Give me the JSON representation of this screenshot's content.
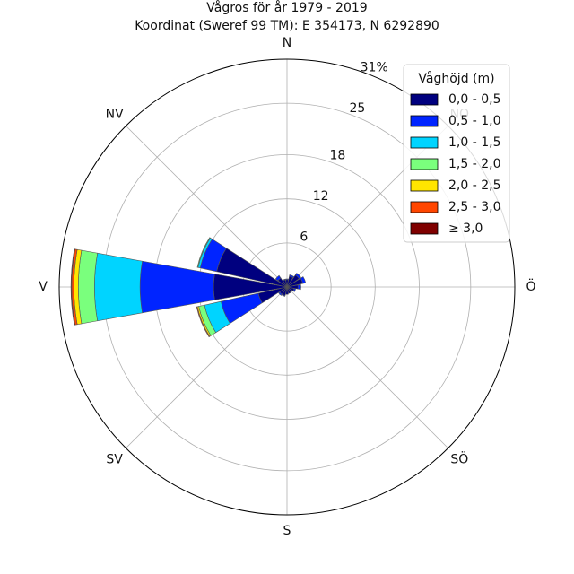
{
  "chart_data": {
    "type": "windrose",
    "title": "Vågros för år 1979 - 2019",
    "subtitle": "Koordinat (Sweref 99 TM): E 354173, N 6292890",
    "directions": [
      "N",
      "NO",
      "Ö",
      "SÖ",
      "S",
      "SV",
      "V",
      "NV"
    ],
    "ring_ticks": [
      6,
      12,
      18,
      25,
      31
    ],
    "ring_tick_labels": [
      "6",
      "12",
      "18",
      "25",
      "31%"
    ],
    "r_max": 31,
    "grid": true,
    "legend": {
      "title": "Våghöjd (m)",
      "placement": "top-right"
    },
    "colors": [
      "#00007f",
      "#0024ff",
      "#00d4ff",
      "#7aff7d",
      "#ffe500",
      "#ff4600",
      "#7f0000"
    ],
    "sectors_deg": [
      0,
      22.5,
      45,
      67.5,
      90,
      112.5,
      135,
      157.5,
      180,
      202.5,
      225,
      247.5,
      270,
      292.5,
      315,
      337.5
    ],
    "series": [
      {
        "name": "0,0 - 0,5",
        "values": [
          1.0,
          1.5,
          2.0,
          2.2,
          1.5,
          1.0,
          0.8,
          0.9,
          1.0,
          1.2,
          1.2,
          4.0,
          10.0,
          9.8,
          1.5,
          1.0
        ]
      },
      {
        "name": "0,5 - 1,0",
        "values": [
          0.1,
          0.2,
          0.3,
          0.4,
          0.4,
          0.2,
          0.0,
          0.0,
          0.0,
          0.1,
          0.2,
          5.2,
          10.0,
          2.3,
          0.4,
          0.1
        ]
      },
      {
        "name": "1,0 - 1,5",
        "values": [
          0.0,
          0.0,
          0.0,
          0.0,
          0.0,
          0.0,
          0.0,
          0.0,
          0.0,
          0.0,
          0.0,
          2.3,
          6.2,
          0.3,
          0.0,
          0.0
        ]
      },
      {
        "name": "1,5 - 2,0",
        "values": [
          0.0,
          0.0,
          0.0,
          0.0,
          0.0,
          0.0,
          0.0,
          0.0,
          0.0,
          0.0,
          0.0,
          0.8,
          2.2,
          0.1,
          0.0,
          0.0
        ]
      },
      {
        "name": "2,0 - 2,5",
        "values": [
          0.0,
          0.0,
          0.0,
          0.0,
          0.0,
          0.0,
          0.0,
          0.0,
          0.0,
          0.0,
          0.0,
          0.2,
          0.6,
          0.0,
          0.0,
          0.0
        ]
      },
      {
        "name": "2,5 - 3,0",
        "values": [
          0.0,
          0.0,
          0.0,
          0.0,
          0.0,
          0.0,
          0.0,
          0.0,
          0.0,
          0.0,
          0.0,
          0.1,
          0.3,
          0.0,
          0.0,
          0.0
        ]
      },
      {
        "name": "≥ 3,0",
        "values": [
          0.0,
          0.0,
          0.0,
          0.0,
          0.0,
          0.0,
          0.0,
          0.0,
          0.0,
          0.0,
          0.0,
          0.0,
          0.1,
          0.0,
          0.0,
          0.0
        ]
      }
    ]
  }
}
